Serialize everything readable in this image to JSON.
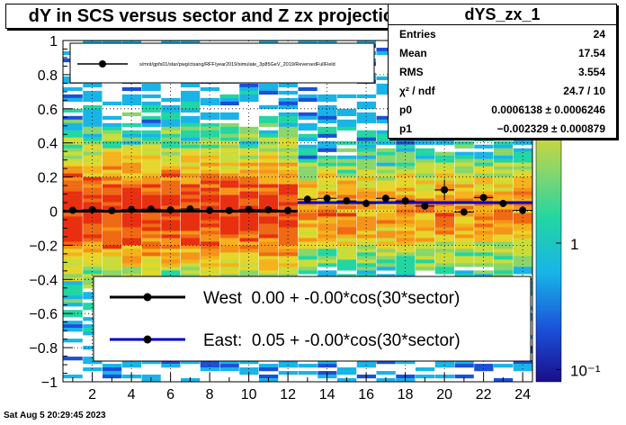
{
  "title": "dY in SCS versus sector and Z zx projection",
  "stats": {
    "name": "dYS_zx_1",
    "rows": [
      {
        "key": "Entries",
        "value": "24"
      },
      {
        "key": "Mean",
        "value": "17.54"
      },
      {
        "key": "RMS",
        "value": "3.554"
      },
      {
        "key": "χ² / ndf",
        "value": "24.7 / 10"
      },
      {
        "key": "p0",
        "value": "0.0006138 ± 0.0006246"
      },
      {
        "key": "p1",
        "value": "−0.002329 ± 0.000879"
      }
    ]
  },
  "date": "Sat Aug  5 20:29:45 2023",
  "colors": {
    "west": "#000000",
    "east": "#0000cc"
  },
  "chart_data": {
    "type": "scatter",
    "title": "dY in SCS versus sector and Z zx projection",
    "xlim": [
      0.5,
      24.5
    ],
    "ylim": [
      -1,
      1
    ],
    "x_ticks": [
      2,
      4,
      6,
      8,
      10,
      12,
      14,
      16,
      18,
      20,
      22,
      24
    ],
    "y_ticks": [
      -1,
      -0.8,
      -0.6,
      -0.4,
      -0.2,
      0,
      0.2,
      0.4,
      0.6,
      0.8,
      1
    ],
    "y_tick_labels": [
      "−1",
      "−0.8",
      "−0.6",
      "−0.4",
      "−0.2",
      "0",
      "0.2",
      "0.4",
      "0.6",
      "0.8",
      "1"
    ],
    "grid": true,
    "colorbar": {
      "scale": "log",
      "tick_labels": [
        "10",
        "1",
        "10⁻¹"
      ],
      "ticks": [
        10,
        1,
        0.1
      ]
    },
    "x": [
      1,
      2,
      3,
      4,
      5,
      6,
      7,
      8,
      9,
      10,
      11,
      12,
      13,
      14,
      15,
      16,
      17,
      18,
      19,
      20,
      21,
      22,
      23,
      24
    ],
    "y": [
      0.005,
      0.008,
      0.003,
      0.01,
      0.012,
      0.008,
      0.013,
      0.005,
      0.004,
      0.01,
      0.008,
      0.004,
      0.07,
      0.075,
      0.06,
      0.045,
      0.075,
      0.06,
      0.03,
      0.125,
      -0.005,
      0.08,
      0.045,
      0.005
    ],
    "yerr": [
      0.01,
      0.01,
      0.01,
      0.01,
      0.01,
      0.01,
      0.01,
      0.01,
      0.01,
      0.01,
      0.01,
      0.01,
      0.015,
      0.02,
      0.02,
      0.02,
      0.02,
      0.025,
      0.02,
      0.06,
      0.02,
      0.02,
      0.02,
      0.025
    ],
    "fits": [
      {
        "name": "West  0.00 + -0.00*cos(30*sector)",
        "x_range": [
          0.5,
          12.5
        ],
        "y": 0.0
      },
      {
        "name": "East:  0.05 + -0.00*cos(30*sector)",
        "x_range": [
          12.5,
          24.5
        ],
        "y": 0.05
      }
    ],
    "legend_top": "/star/u/tcsang/RFF/year2019/simulate_3p85GeV_2019/ReversedFullField",
    "legend_top_display": "s/mnt/gpfs01/star/pwg/ctsang/RFF/year2019/simulate_3p85GeV_2019/ReversedFullField"
  }
}
